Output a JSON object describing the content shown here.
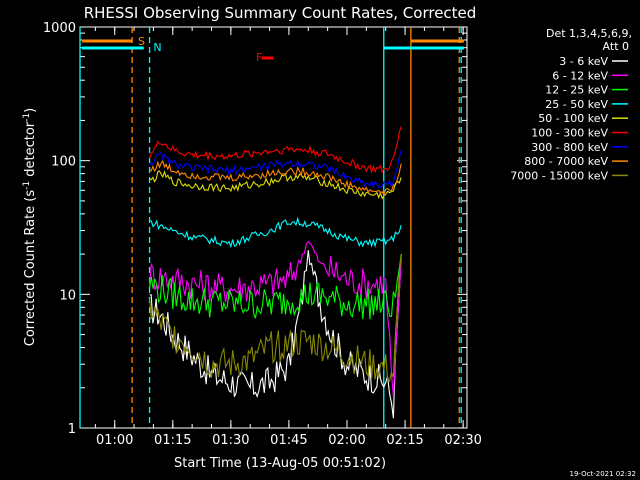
{
  "chart_data": {
    "type": "line",
    "title": "RHESSI Observing Summary Count Rates, Corrected",
    "xlabel": "Start Time (13-Aug-05 00:51:02)",
    "ylabel_main": "Corrected Count Rate (s",
    "ylabel_sup1": "-1",
    "ylabel_mid": " detector",
    "ylabel_sup2": "-1",
    "ylabel_end": ")",
    "yscale": "log",
    "ylim": [
      1,
      1000
    ],
    "y_ticks": [
      "1",
      "10",
      "100",
      "1000"
    ],
    "xlim": [
      "00:51:02",
      "02:31:00"
    ],
    "x_ticks": [
      "01:00",
      "01:15",
      "01:30",
      "01:45",
      "02:00",
      "02:15",
      "02:30"
    ],
    "legend_title_1": "Det 1,3,4,5,6,9,",
    "legend_title_2": "Att 0",
    "series": [
      {
        "name": "3 - 6 keV",
        "color": "#ffffff",
        "x": [
          "01:09",
          "01:12",
          "01:15",
          "01:20",
          "01:25",
          "01:30",
          "01:35",
          "01:40",
          "01:45",
          "01:48",
          "01:50",
          "01:53",
          "01:56",
          "02:00",
          "02:05",
          "02:10",
          "02:12",
          "02:14"
        ],
        "y": [
          8,
          7,
          5,
          3.5,
          2.5,
          2.2,
          2.0,
          2.2,
          3,
          8,
          20,
          9,
          5,
          3,
          2.5,
          2.2,
          1.5,
          20
        ]
      },
      {
        "name": "6 - 12 keV",
        "color": "#ff00ff",
        "x": [
          "01:09",
          "01:15",
          "01:20",
          "01:30",
          "01:40",
          "01:45",
          "01:48",
          "01:50",
          "01:53",
          "02:00",
          "02:05",
          "02:10",
          "02:12",
          "02:14"
        ],
        "y": [
          14,
          13,
          12,
          11,
          12,
          13,
          18,
          26,
          17,
          13,
          12,
          12,
          1.5,
          18
        ]
      },
      {
        "name": "12 - 25 keV",
        "color": "#00ff00",
        "x": [
          "01:09",
          "01:15",
          "01:20",
          "01:30",
          "01:40",
          "01:45",
          "01:50",
          "01:55",
          "02:00",
          "02:05",
          "02:10",
          "02:12",
          "02:14"
        ],
        "y": [
          12,
          10,
          9,
          8.5,
          8.5,
          9,
          10,
          9.5,
          8.5,
          8.5,
          8.5,
          8,
          20
        ]
      },
      {
        "name": "25 - 50 keV",
        "color": "#00ffff",
        "x": [
          "01:09",
          "01:15",
          "01:20",
          "01:30",
          "01:40",
          "01:45",
          "01:50",
          "01:55",
          "02:00",
          "02:05",
          "02:10",
          "02:12",
          "02:14"
        ],
        "y": [
          35,
          30,
          27,
          24,
          30,
          35,
          34,
          30,
          26,
          24,
          25,
          26,
          33
        ]
      },
      {
        "name": "50 - 100 keV",
        "color": "#dddd00",
        "x": [
          "01:09",
          "01:12",
          "01:15",
          "01:20",
          "01:30",
          "01:40",
          "01:45",
          "01:50",
          "01:55",
          "02:00",
          "02:05",
          "02:10",
          "02:12",
          "02:14"
        ],
        "y": [
          70,
          80,
          70,
          65,
          62,
          70,
          76,
          74,
          68,
          60,
          56,
          55,
          60,
          75
        ]
      },
      {
        "name": "100 - 300 keV",
        "color": "#ff0000",
        "x": [
          "01:09",
          "01:12",
          "01:15",
          "01:20",
          "01:30",
          "01:40",
          "01:45",
          "01:50",
          "01:55",
          "02:00",
          "02:05",
          "02:10",
          "02:12",
          "02:14"
        ],
        "y": [
          110,
          140,
          120,
          110,
          108,
          118,
          122,
          120,
          112,
          98,
          88,
          85,
          100,
          180
        ]
      },
      {
        "name": "300 - 800 keV",
        "color": "#0000ff",
        "x": [
          "01:09",
          "01:12",
          "01:15",
          "01:20",
          "01:30",
          "01:40",
          "01:45",
          "01:50",
          "01:55",
          "02:00",
          "02:05",
          "02:10",
          "02:12",
          "02:14"
        ],
        "y": [
          95,
          110,
          95,
          88,
          84,
          92,
          96,
          95,
          88,
          75,
          68,
          65,
          70,
          120
        ]
      },
      {
        "name": "800 - 7000 keV",
        "color": "#ff8800",
        "x": [
          "01:09",
          "01:12",
          "01:15",
          "01:20",
          "01:30",
          "01:40",
          "01:45",
          "01:50",
          "01:55",
          "02:00",
          "02:05",
          "02:10",
          "02:12",
          "02:14"
        ],
        "y": [
          85,
          95,
          85,
          78,
          74,
          80,
          84,
          82,
          76,
          66,
          60,
          58,
          62,
          95
        ]
      },
      {
        "name": "7000 - 15000 keV",
        "color": "#888800",
        "x": [
          "01:09",
          "01:12",
          "01:15",
          "01:20",
          "01:25",
          "01:30",
          "01:35",
          "01:40",
          "01:45",
          "01:50",
          "01:55",
          "02:00",
          "02:05",
          "02:10",
          "02:12",
          "02:14"
        ],
        "y": [
          8,
          6,
          5,
          4,
          3,
          3,
          3.2,
          4,
          4.2,
          4.5,
          4,
          3.5,
          3,
          2.8,
          2.5,
          20
        ]
      }
    ],
    "annotations": [
      {
        "text": "S",
        "color": "#ff8800"
      },
      {
        "text": "N",
        "color": "#00ffff"
      },
      {
        "text": "F",
        "color": "#ff0000"
      }
    ],
    "vertical_markers": [
      {
        "x": "00:51:02",
        "style": "solid",
        "color": "#00ffff"
      },
      {
        "x": "01:04:30",
        "style": "dashed",
        "color": "#ff8800"
      },
      {
        "x": "01:09:00",
        "style": "dashed",
        "color": "#00ffff"
      },
      {
        "x": "02:09:30",
        "style": "solid",
        "color": "#00ffff"
      },
      {
        "x": "02:16:30",
        "style": "solid",
        "color": "#ff8800"
      },
      {
        "x": "02:29:30",
        "style": "dashed",
        "color": "#00ffff"
      },
      {
        "x": "02:29:00",
        "style": "dashed",
        "color": "#ff8800"
      }
    ],
    "footer_stamp": "19-Oct-2021 02:32"
  }
}
